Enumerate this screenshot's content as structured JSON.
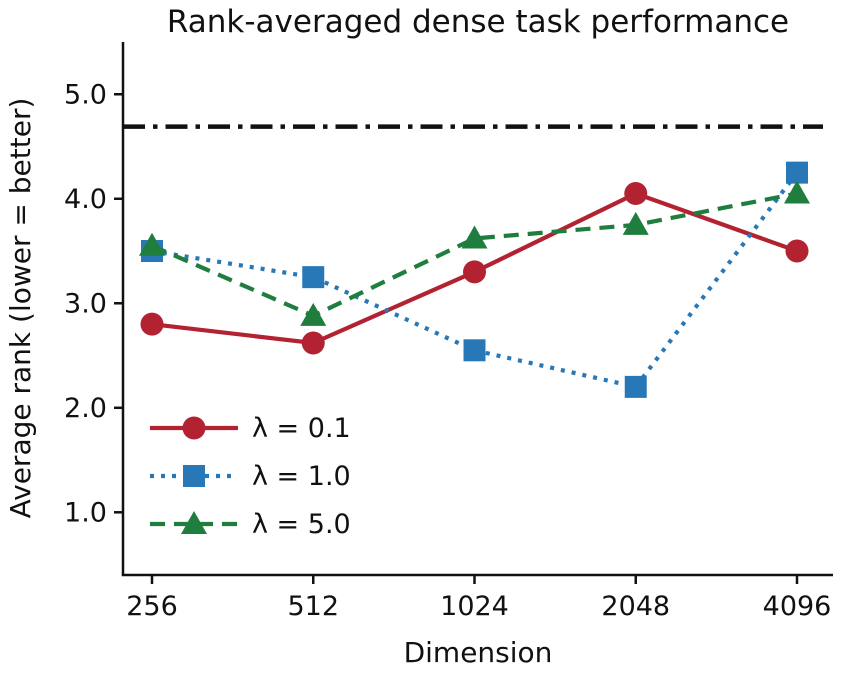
{
  "chart_data": {
    "type": "line",
    "title": "Rank-averaged dense task performance",
    "xlabel": "Dimension",
    "ylabel": "Average rank (lower = better)",
    "categories": [
      "256",
      "512",
      "1024",
      "2048",
      "4096"
    ],
    "yticks": [
      "1.0",
      "2.0",
      "3.0",
      "4.0",
      "5.0"
    ],
    "ylim": [
      0.4,
      5.5
    ],
    "grid": false,
    "legend_position": "lower-left-inside",
    "legend_frame": false,
    "baseline": {
      "value": 4.69,
      "style": "dashdot",
      "color": "#111111",
      "meaning": "horizontal reference line"
    },
    "series": [
      {
        "name": "λ = 0.1",
        "marker": "circle",
        "line": "solid",
        "color": "#b22230",
        "values": [
          2.8,
          2.62,
          3.3,
          4.05,
          3.5
        ]
      },
      {
        "name": "λ = 1.0",
        "marker": "square",
        "line": "dotted",
        "color": "#2878b8",
        "values": [
          3.5,
          3.25,
          2.55,
          2.2,
          4.25
        ]
      },
      {
        "name": "λ = 5.0",
        "marker": "triangle",
        "line": "dashed",
        "color": "#1f7e3d",
        "values": [
          3.55,
          2.88,
          3.62,
          3.75,
          4.05
        ]
      }
    ],
    "axis_color": "#111111"
  }
}
